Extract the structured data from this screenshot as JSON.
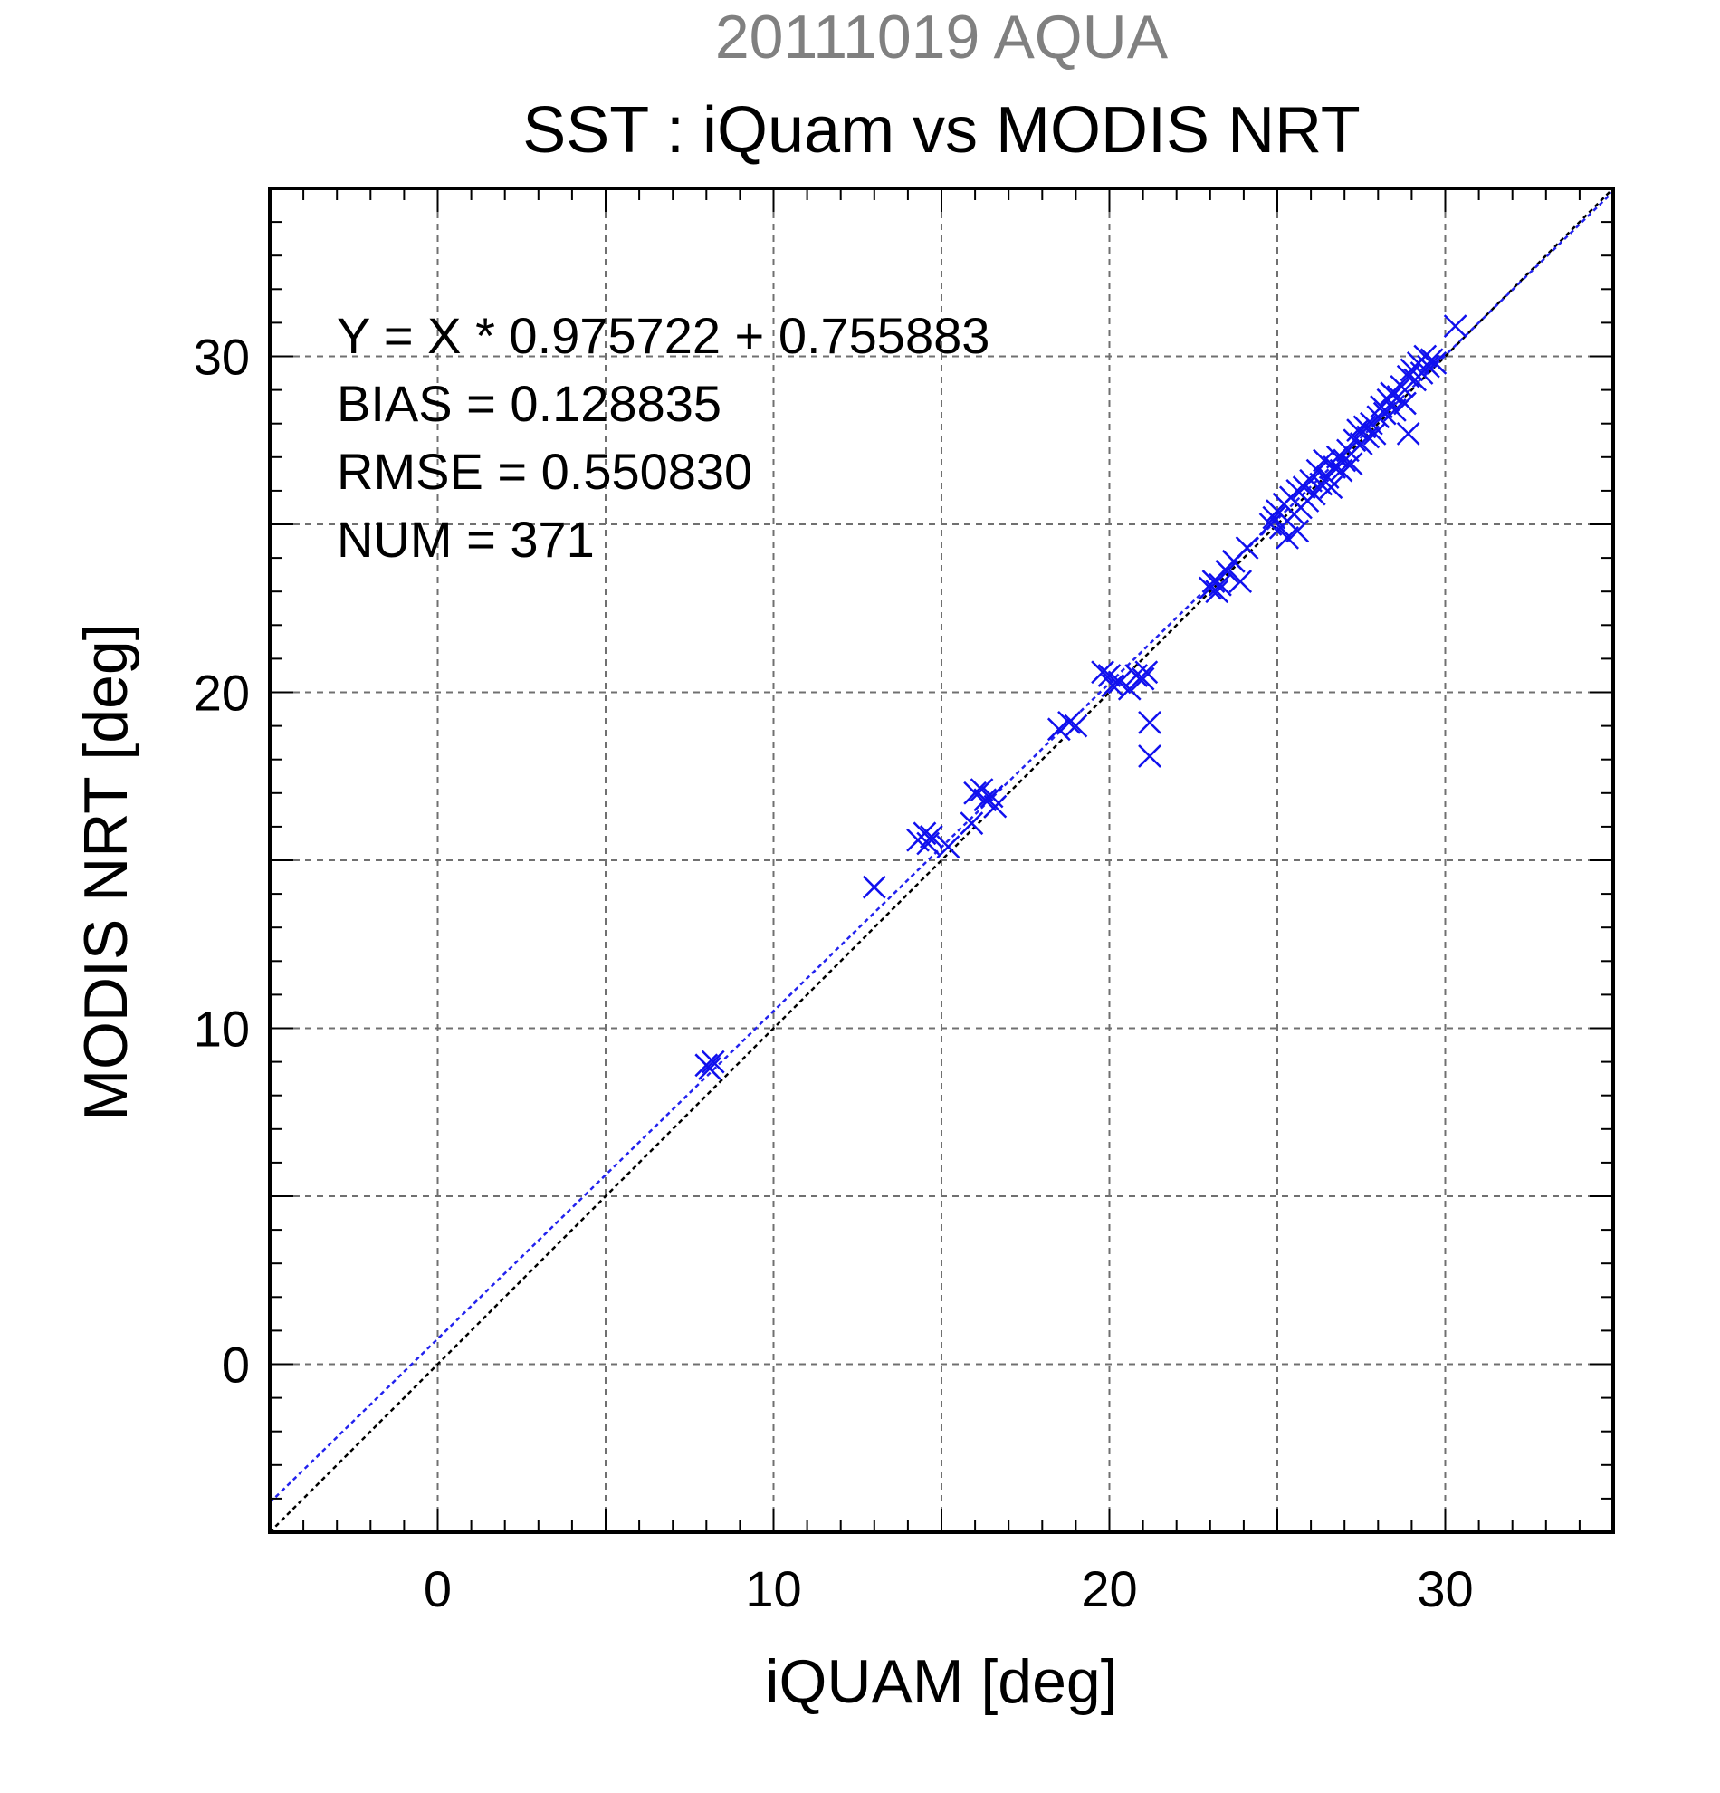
{
  "chart_data": {
    "type": "scatter",
    "supertitle": "20111019 AQUA",
    "title": "SST : iQuam vs MODIS NRT",
    "xlabel": "iQUAM [deg]",
    "ylabel": "MODIS NRT [deg]",
    "xlim": [
      -5,
      35
    ],
    "ylim": [
      -5,
      35
    ],
    "xticks": [
      0,
      10,
      20,
      30
    ],
    "yticks": [
      0,
      10,
      20,
      30
    ],
    "grid": true,
    "colors": {
      "points": "#1010ee",
      "fit_line": "#2222ee",
      "identity_line": "#000000",
      "supertitle": "#808080",
      "grid": "#707070"
    },
    "stats": {
      "equation": "Y = X * 0.975722 + 0.755883",
      "bias": "BIAS = 0.128835",
      "rmse": "RMSE = 0.550830",
      "num": "NUM = 371"
    },
    "fit_line": {
      "slope": 0.975722,
      "intercept": 0.755883
    },
    "identity_line": {
      "slope": 1,
      "intercept": 0
    },
    "series": [
      {
        "points": [
          [
            8.0,
            8.9
          ],
          [
            8.2,
            9.0
          ],
          [
            8.1,
            8.8
          ],
          [
            13.0,
            14.2
          ],
          [
            14.3,
            15.6
          ],
          [
            14.5,
            15.8
          ],
          [
            14.6,
            15.5
          ],
          [
            14.7,
            15.7
          ],
          [
            15.2,
            15.4
          ],
          [
            15.9,
            16.1
          ],
          [
            16.0,
            17.0
          ],
          [
            16.2,
            17.1
          ],
          [
            16.3,
            16.8
          ],
          [
            16.5,
            16.9
          ],
          [
            16.6,
            16.6
          ],
          [
            18.5,
            18.9
          ],
          [
            18.8,
            19.1
          ],
          [
            19.0,
            19.0
          ],
          [
            19.8,
            20.6
          ],
          [
            20.0,
            20.5
          ],
          [
            20.1,
            20.2
          ],
          [
            20.3,
            20.3
          ],
          [
            20.6,
            20.1
          ],
          [
            20.8,
            20.5
          ],
          [
            21.0,
            20.4
          ],
          [
            21.1,
            20.6
          ],
          [
            21.2,
            19.1
          ],
          [
            21.2,
            18.1
          ],
          [
            23.0,
            23.1
          ],
          [
            23.1,
            23.3
          ],
          [
            23.2,
            23.0
          ],
          [
            23.3,
            23.2
          ],
          [
            23.5,
            23.6
          ],
          [
            23.7,
            23.9
          ],
          [
            23.9,
            23.3
          ],
          [
            24.1,
            24.3
          ],
          [
            24.8,
            25.0
          ],
          [
            24.9,
            25.2
          ],
          [
            25.0,
            25.4
          ],
          [
            25.1,
            24.9
          ],
          [
            25.2,
            25.6
          ],
          [
            25.3,
            25.1
          ],
          [
            25.3,
            24.6
          ],
          [
            25.4,
            25.8
          ],
          [
            25.5,
            25.3
          ],
          [
            25.6,
            26.0
          ],
          [
            25.6,
            24.8
          ],
          [
            25.7,
            25.5
          ],
          [
            25.8,
            26.1
          ],
          [
            25.9,
            25.7
          ],
          [
            26.0,
            26.3
          ],
          [
            26.1,
            25.9
          ],
          [
            26.2,
            26.6
          ],
          [
            26.3,
            26.2
          ],
          [
            26.4,
            26.9
          ],
          [
            26.5,
            26.4
          ],
          [
            26.6,
            26.1
          ],
          [
            26.7,
            26.7
          ],
          [
            26.8,
            27.0
          ],
          [
            26.9,
            26.6
          ],
          [
            27.0,
            26.9
          ],
          [
            27.1,
            27.2
          ],
          [
            27.2,
            26.8
          ],
          [
            27.3,
            27.5
          ],
          [
            27.4,
            27.8
          ],
          [
            27.5,
            27.4
          ],
          [
            27.6,
            27.9
          ],
          [
            27.7,
            27.6
          ],
          [
            27.8,
            28.0
          ],
          [
            27.9,
            27.7
          ],
          [
            28.0,
            28.2
          ],
          [
            28.1,
            28.5
          ],
          [
            28.2,
            28.3
          ],
          [
            28.3,
            28.7
          ],
          [
            28.4,
            28.9
          ],
          [
            28.5,
            28.4
          ],
          [
            28.6,
            28.8
          ],
          [
            28.7,
            29.1
          ],
          [
            28.8,
            28.6
          ],
          [
            28.9,
            29.4
          ],
          [
            28.9,
            27.7
          ],
          [
            29.0,
            29.6
          ],
          [
            29.1,
            29.3
          ],
          [
            29.2,
            29.8
          ],
          [
            29.3,
            29.5
          ],
          [
            29.4,
            30.0
          ],
          [
            29.5,
            29.7
          ],
          [
            29.6,
            29.9
          ],
          [
            29.7,
            29.8
          ],
          [
            30.3,
            30.9
          ]
        ]
      }
    ]
  }
}
